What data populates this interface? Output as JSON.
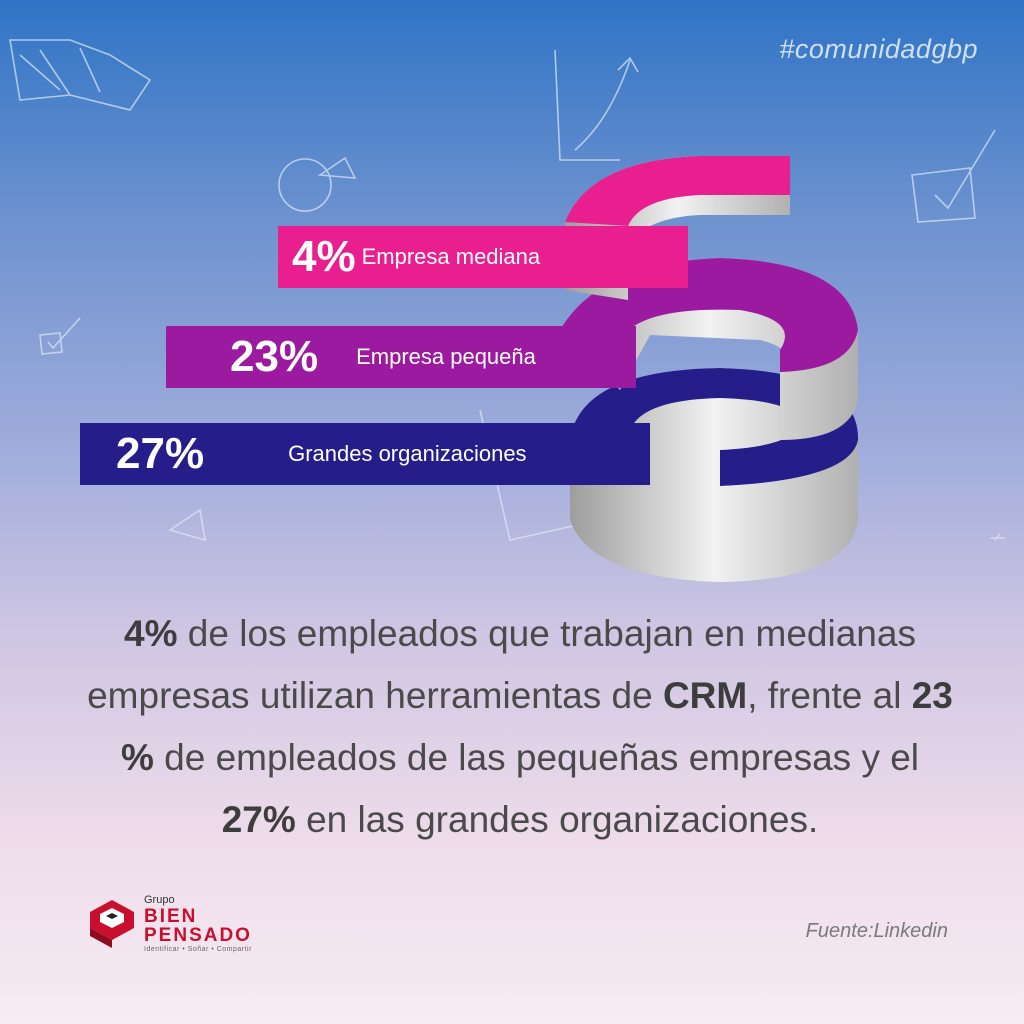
{
  "hashtag": "#comunidadgbp",
  "chart_data": {
    "type": "bar",
    "categories": [
      "Empresa mediana",
      "Empresa pequeña",
      "Grandes organizaciones"
    ],
    "values": [
      4,
      23,
      27
    ],
    "value_labels": [
      "4%",
      "23%",
      "27%"
    ],
    "colors": [
      "#ea1f8f",
      "#9b1a9f",
      "#241d8a"
    ]
  },
  "body": {
    "parts": [
      {
        "text": "4%",
        "bold": true
      },
      {
        "text": " de los empleados que trabajan en medianas empresas utilizan herramientas de ",
        "bold": false
      },
      {
        "text": "CRM",
        "bold": true
      },
      {
        "text": ", frente al ",
        "bold": false
      },
      {
        "text": "23 %",
        "bold": true
      },
      {
        "text": " de empleados de las pequeñas empresas y el ",
        "bold": false
      },
      {
        "text": "27%",
        "bold": true
      },
      {
        "text": " en las grandes organizaciones.",
        "bold": false
      }
    ]
  },
  "logo": {
    "grupo": "Grupo",
    "line1": "BIEN",
    "line2": "PENSADO",
    "tagline": "Identificar • Soñar • Compartir"
  },
  "source": "Fuente:Linkedin",
  "colors": {
    "accent_red": "#c8102e",
    "ring_grey": "#c9c9c9"
  }
}
